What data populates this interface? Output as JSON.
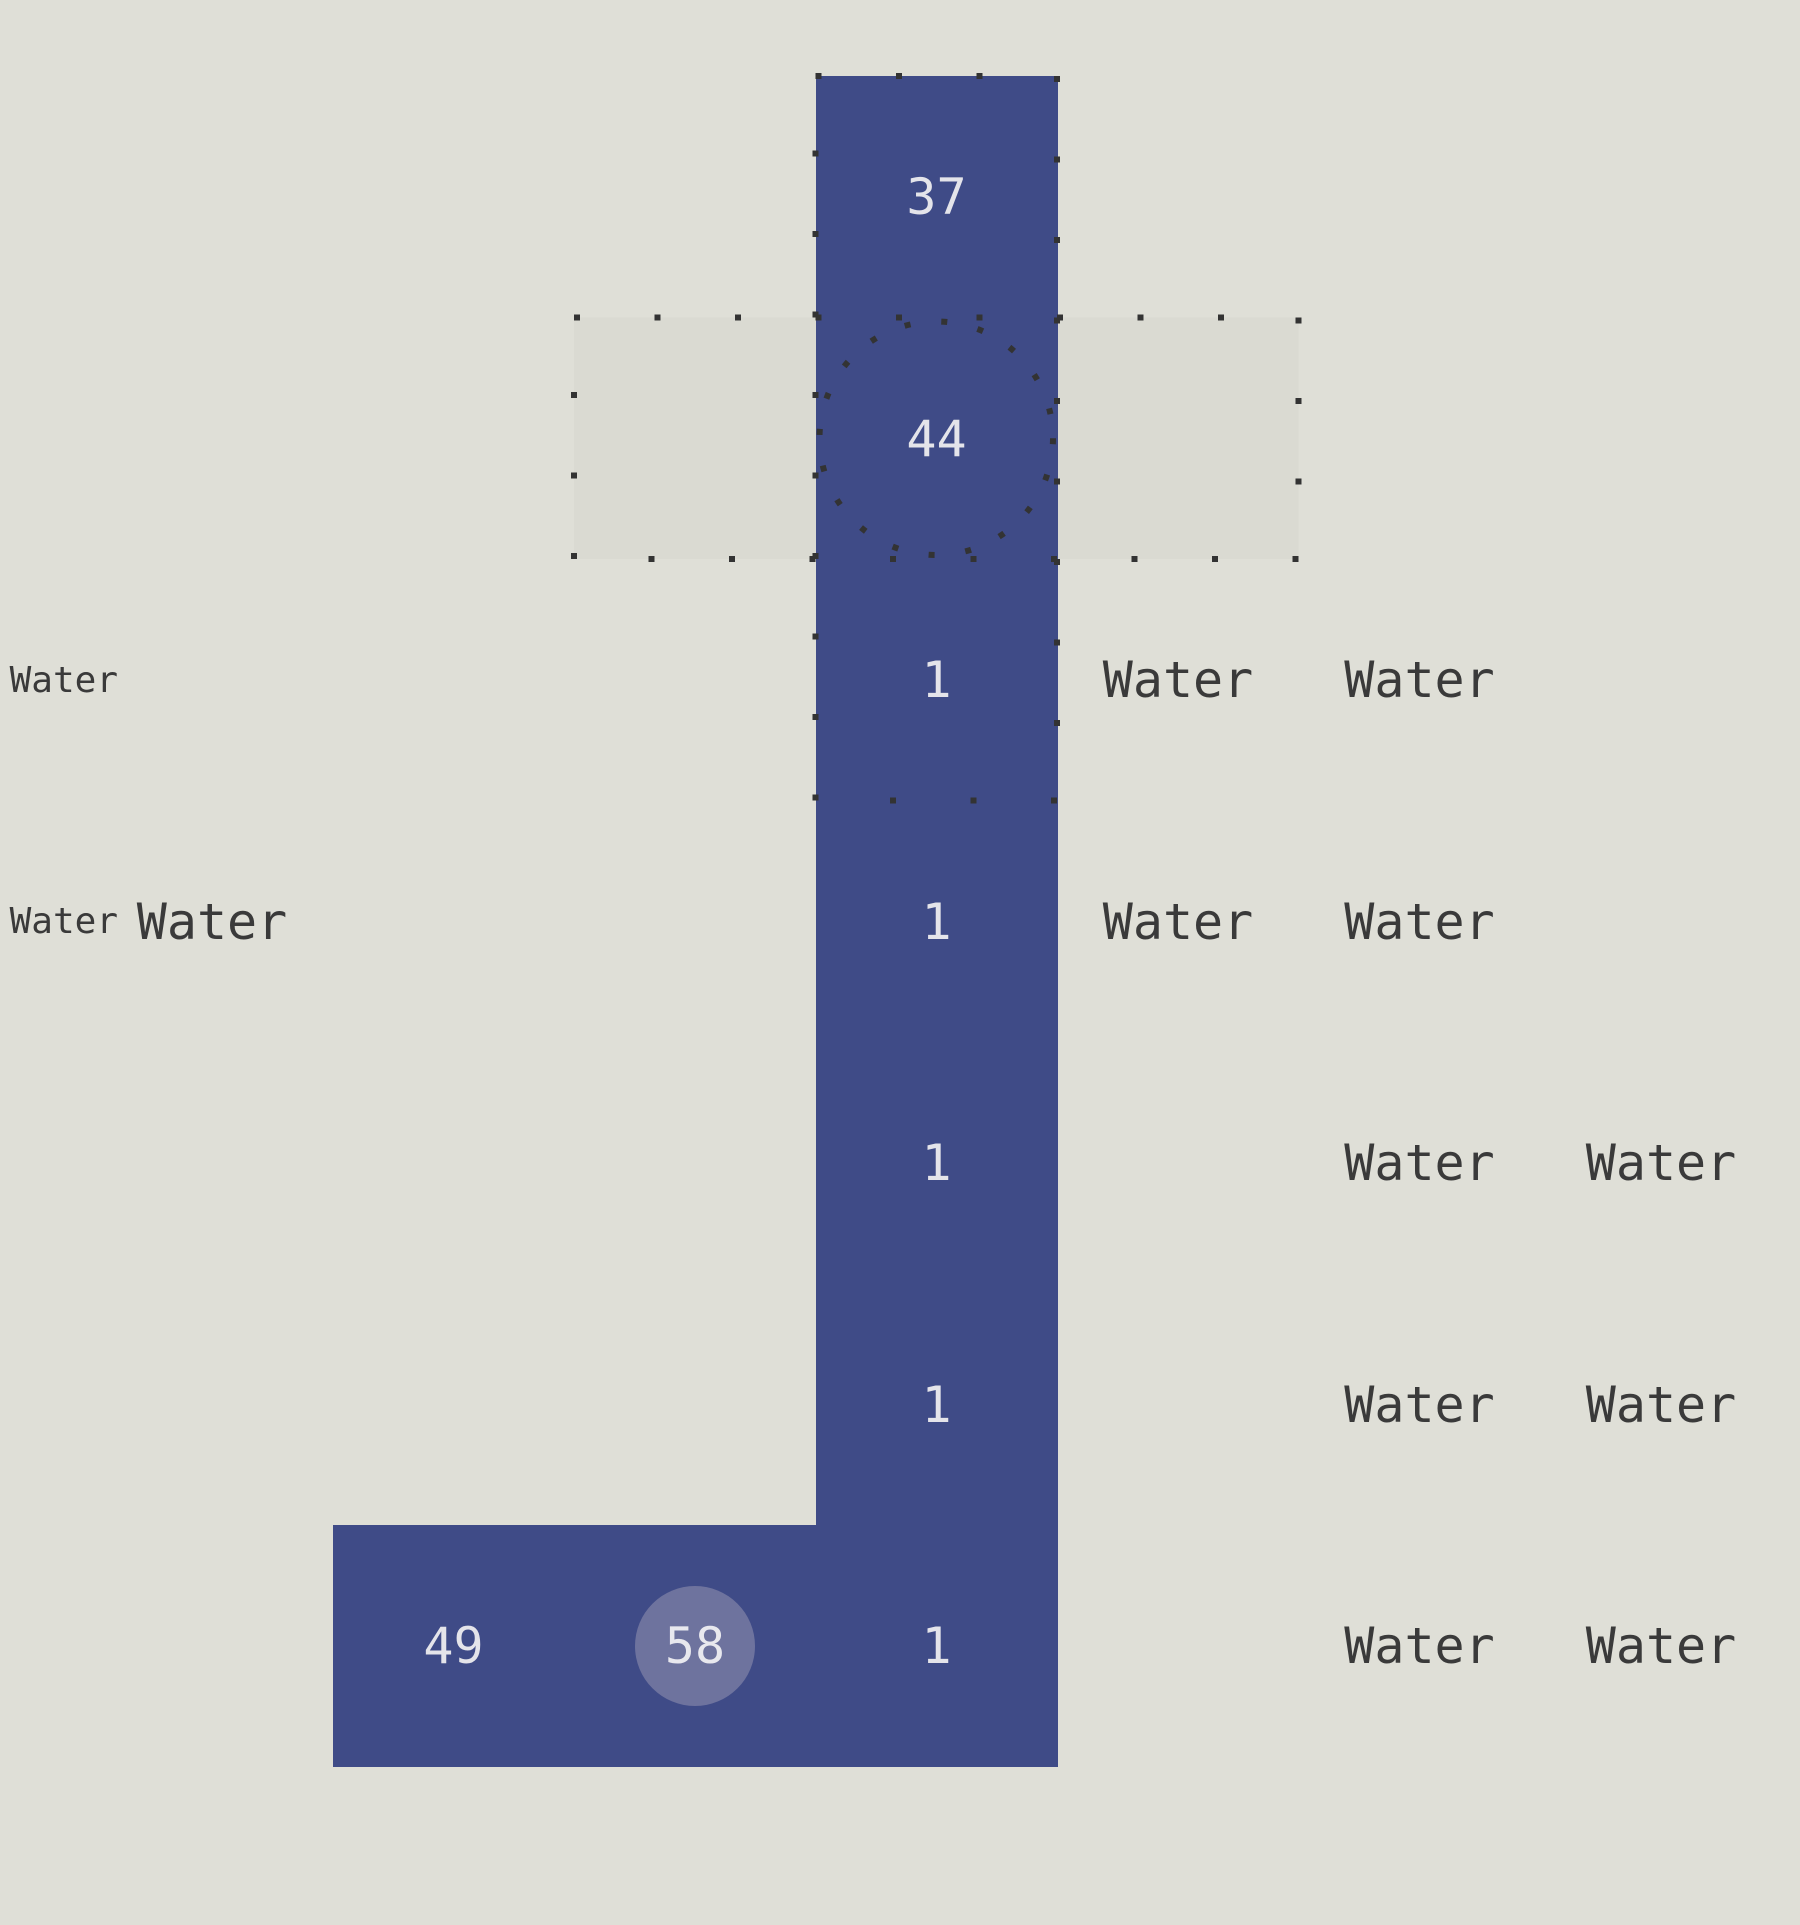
{
  "colors": {
    "background": "#dfdfd7",
    "path": "#3f4b87",
    "selected": "#6e739e",
    "highlight": "#dadad2",
    "text_light": "#e4e4ea",
    "text_dark": "#3a3a3a"
  },
  "cells": [
    {
      "row": 0,
      "col": 3,
      "value": "37"
    },
    {
      "row": 1,
      "col": 3,
      "value": "44"
    },
    {
      "row": 2,
      "col": 3,
      "value": "1"
    },
    {
      "row": 3,
      "col": 3,
      "value": "1"
    },
    {
      "row": 4,
      "col": 3,
      "value": "1"
    },
    {
      "row": 5,
      "col": 3,
      "value": "1"
    },
    {
      "row": 6,
      "col": 1,
      "value": "49"
    },
    {
      "row": 6,
      "col": 2,
      "value": "58",
      "selected": true
    },
    {
      "row": 6,
      "col": 3,
      "value": "1"
    }
  ],
  "labels": [
    {
      "row": 2,
      "col": -1,
      "text": "Water"
    },
    {
      "row": 2,
      "col": 4,
      "text": "Water"
    },
    {
      "row": 2,
      "col": 5,
      "text": "Water"
    },
    {
      "row": 3,
      "col": -1,
      "text": "Water"
    },
    {
      "row": 3,
      "col": 0,
      "text": "Water"
    },
    {
      "row": 3,
      "col": 4,
      "text": "Water"
    },
    {
      "row": 3,
      "col": 5,
      "text": "Water"
    },
    {
      "row": 4,
      "col": 5,
      "text": "Water"
    },
    {
      "row": 4,
      "col": 6,
      "text": "Water"
    },
    {
      "row": 5,
      "col": 5,
      "text": "Water"
    },
    {
      "row": 5,
      "col": 6,
      "text": "Water"
    },
    {
      "row": 6,
      "col": 5,
      "text": "Water"
    },
    {
      "row": 6,
      "col": 6,
      "text": "Water"
    }
  ],
  "highlights": {
    "column_box": {
      "col": 3,
      "row_from": 0,
      "row_to": 2
    },
    "row_box": {
      "row": 1,
      "col_from": 2,
      "col_to": 4
    },
    "focus_circle": {
      "row": 1,
      "col": 3
    }
  }
}
